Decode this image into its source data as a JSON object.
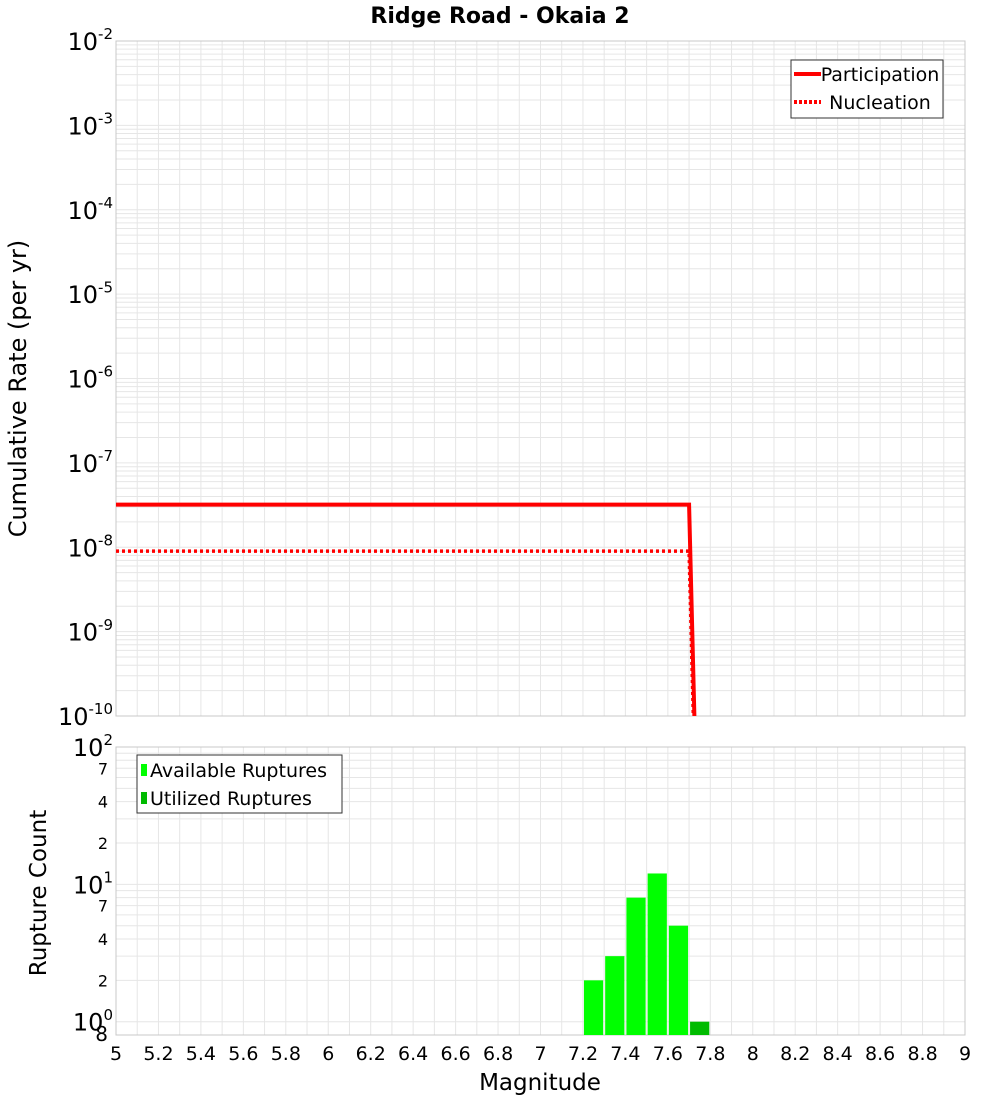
{
  "chart_data": [
    {
      "type": "line",
      "title": "Ridge Road - Okaia 2",
      "ylabel": "Cumulative Rate (per yr)",
      "xlabel": "",
      "xlim": [
        5,
        9
      ],
      "ylim": [
        1e-10,
        0.01
      ],
      "yscale": "log",
      "grid": true,
      "legend_position": "top-right",
      "y_tick_bases": [
        "10",
        "10",
        "10",
        "10",
        "10",
        "10",
        "10",
        "10",
        "10"
      ],
      "y_tick_exponents": [
        "-2",
        "-3",
        "-4",
        "-5",
        "-6",
        "-7",
        "-8",
        "-9",
        "-10"
      ],
      "y_tick_values": [
        0.01,
        0.001,
        0.0001,
        1e-05,
        1e-06,
        1e-07,
        1e-08,
        1e-09,
        1e-10
      ],
      "series": [
        {
          "name": "Participation",
          "style": "solid",
          "color": "#ff0000",
          "x": [
            5.0,
            7.7,
            7.725
          ],
          "y": [
            3.2e-08,
            3.2e-08,
            1e-10
          ]
        },
        {
          "name": "Nucleation",
          "style": "dotted",
          "color": "#ff0000",
          "x": [
            5.0,
            7.7,
            7.72
          ],
          "y": [
            9e-09,
            9e-09,
            1e-10
          ]
        }
      ]
    },
    {
      "type": "bar",
      "title": "",
      "ylabel": "Rupture Count",
      "xlabel": "Magnitude",
      "xlim": [
        5,
        9
      ],
      "ylim": [
        0.8,
        100
      ],
      "yscale": "log",
      "grid": true,
      "legend_position": "top-left",
      "x_ticks": [
        5,
        5.2,
        5.4,
        5.6,
        5.8,
        6,
        6.2,
        6.4,
        6.6,
        6.8,
        7,
        7.2,
        7.4,
        7.6,
        7.8,
        8,
        8.2,
        8.4,
        8.6,
        8.8,
        9
      ],
      "x_tick_labels": [
        "5",
        "5.2",
        "5.4",
        "5.6",
        "5.8",
        "6",
        "6.2",
        "6.4",
        "6.6",
        "6.8",
        "7",
        "7.2",
        "7.4",
        "7.6",
        "7.8",
        "8",
        "8.2",
        "8.4",
        "8.6",
        "8.8",
        "9"
      ],
      "y_major_ticks": [
        {
          "value": 100,
          "base": "10",
          "exp": "2"
        },
        {
          "value": 10,
          "base": "10",
          "exp": "1"
        },
        {
          "value": 1,
          "base": "10",
          "exp": "0"
        }
      ],
      "y_minor_ticks": [
        {
          "value": 70,
          "label": "7"
        },
        {
          "value": 40,
          "label": "4"
        },
        {
          "value": 20,
          "label": "2"
        },
        {
          "value": 7,
          "label": "7"
        },
        {
          "value": 4,
          "label": "4"
        },
        {
          "value": 2,
          "label": "2"
        },
        {
          "value": 0.8,
          "label": "8"
        }
      ],
      "bin_width": 0.1,
      "series": [
        {
          "name": "Available Ruptures",
          "color": "#00ff00",
          "x": [
            7.25,
            7.35,
            7.45,
            7.55,
            7.65
          ],
          "values": [
            2,
            3,
            8,
            12,
            5
          ]
        },
        {
          "name": "Utilized Ruptures",
          "color": "#00bb00",
          "x": [
            7.75
          ],
          "values": [
            1
          ]
        }
      ]
    }
  ]
}
